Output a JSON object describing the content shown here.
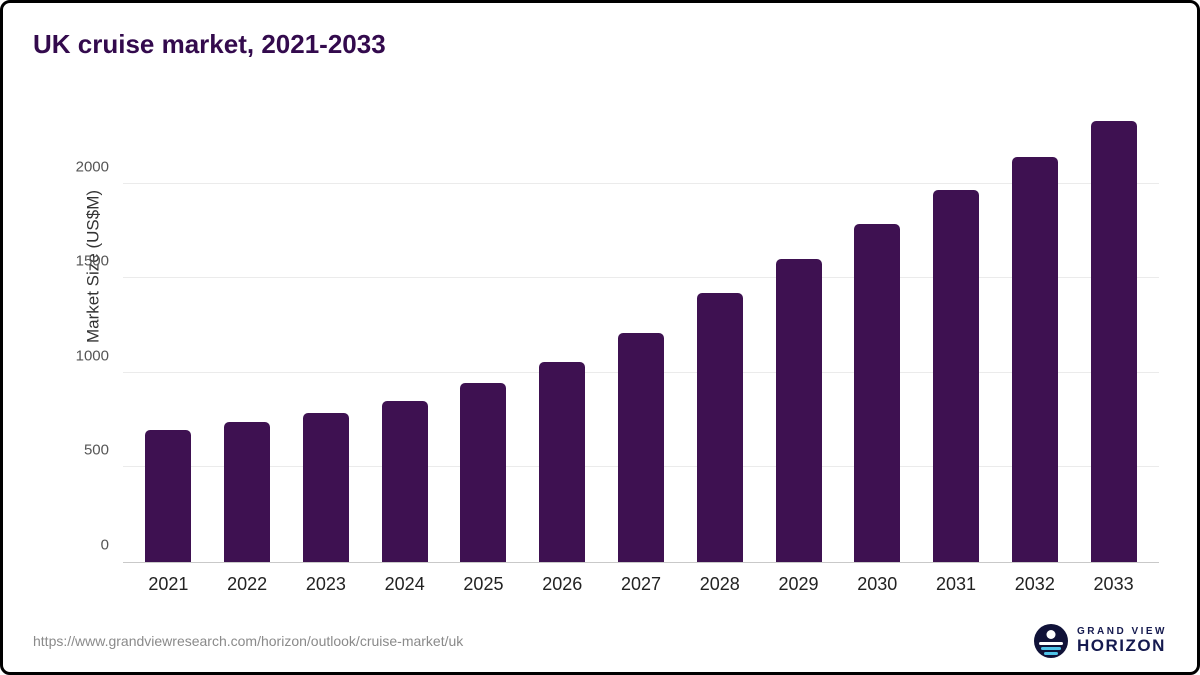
{
  "title": "UK cruise market, 2021-2033",
  "source_url": "https://www.grandviewresearch.com/horizon/outlook/cruise-market/uk",
  "logo": {
    "line1": "GRAND VIEW",
    "line2": "HORIZON"
  },
  "colors": {
    "bar": "#3e1151",
    "title": "#330a4d",
    "gridline": "#ebebeb",
    "axis": "#c9c9c9"
  },
  "chart_data": {
    "type": "bar",
    "title": "UK cruise market, 2021-2033",
    "xlabel": "",
    "ylabel": "Market Size (US$M)",
    "categories": [
      "2021",
      "2022",
      "2023",
      "2024",
      "2025",
      "2026",
      "2027",
      "2028",
      "2029",
      "2030",
      "2031",
      "2032",
      "2033"
    ],
    "values": [
      700,
      740,
      790,
      850,
      945,
      1055,
      1210,
      1420,
      1600,
      1785,
      1965,
      2140,
      2330
    ],
    "yticks": [
      0,
      500,
      1000,
      1500,
      2000
    ],
    "ylim": [
      0,
      2400
    ],
    "grid": true,
    "legend": "none",
    "bar_color": "#3e1151"
  }
}
